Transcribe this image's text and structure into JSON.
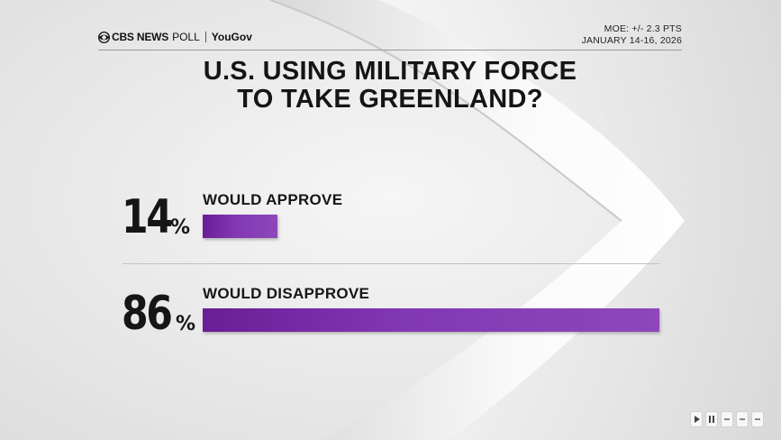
{
  "header": {
    "brand_cbs": "CBS NEWS",
    "brand_poll": "POLL",
    "brand_partner": "YouGov",
    "moe": "MOE: +/- 2.3 PTS",
    "dates": "JANUARY 14-16, 2026"
  },
  "colors": {
    "bar_start": "#6a1d96",
    "bar_end": "#8e47bb",
    "text": "#161616"
  },
  "chart_data": {
    "type": "bar",
    "orientation": "horizontal",
    "title_line1": "U.S. USING MILITARY FORCE",
    "title_line2": "TO TAKE GREENLAND?",
    "categories": [
      "WOULD APPROVE",
      "WOULD DISAPPROVE"
    ],
    "values": [
      14,
      86
    ],
    "value_labels": [
      "14",
      "86"
    ],
    "unit": "%",
    "xlim": [
      0,
      86
    ]
  }
}
